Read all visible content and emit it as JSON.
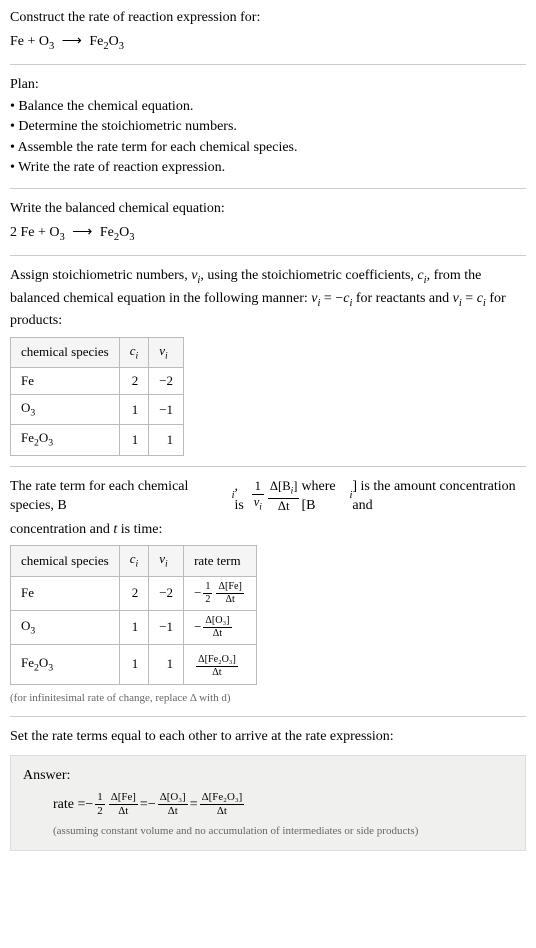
{
  "header": {
    "construct_text": "Construct the rate of reaction expression for:",
    "equation_left": "Fe + O",
    "equation_o_sub": "3",
    "equation_arrow": "⟶",
    "equation_right": "Fe",
    "equation_fe_sub": "2",
    "equation_right2": "O",
    "equation_o2_sub": "3"
  },
  "plan": {
    "title": "Plan:",
    "items": [
      "• Balance the chemical equation.",
      "• Determine the stoichiometric numbers.",
      "• Assemble the rate term for each chemical species.",
      "• Write the rate of reaction expression."
    ]
  },
  "balanced": {
    "title": "Write the balanced chemical equation:",
    "eq_prefix": "2 Fe + O",
    "o3_sub": "3",
    "arrow": "⟶",
    "fe": "Fe",
    "fe_sub": "2",
    "o": "O",
    "o_sub": "3"
  },
  "stoich": {
    "intro1": "Assign stoichiometric numbers, ",
    "nu_i": "ν",
    "i_sub": "i",
    "intro2": ", using the stoichiometric coefficients, ",
    "c_i": "c",
    "intro3": ", from the balanced chemical equation in the following manner: ",
    "eq1": " = −",
    "intro4": " for reactants and ",
    "eq2": " = ",
    "intro5": " for products:",
    "headers": [
      "chemical species",
      "cᵢ",
      "νᵢ"
    ],
    "rows": [
      {
        "species": "Fe",
        "sub": "",
        "c": "2",
        "nu": "−2"
      },
      {
        "species": "O",
        "sub": "3",
        "c": "1",
        "nu": "−1"
      },
      {
        "species": "Fe",
        "sub": "2",
        "species2": "O",
        "sub2": "3",
        "c": "1",
        "nu": "1"
      }
    ]
  },
  "rateterm": {
    "intro1": "The rate term for each chemical species, B",
    "i_sub": "i",
    "intro2": ", is ",
    "frac1_top": "1",
    "frac1_bot_nu": "ν",
    "frac1_bot_i": "i",
    "frac2_top_delta": "Δ[B",
    "frac2_top_i": "i",
    "frac2_top_close": "]",
    "frac2_bot": "Δt",
    "intro3": " where [B",
    "intro4": "] is the amount concentration and ",
    "t_var": "t",
    "intro5": " is time:",
    "headers": [
      "chemical species",
      "cᵢ",
      "νᵢ",
      "rate term"
    ],
    "rows": [
      {
        "species": "Fe",
        "sub": "",
        "c": "2",
        "nu": "−2",
        "rt_neg": "−",
        "rt_half_top": "1",
        "rt_half_bot": "2",
        "rt_delta_top": "Δ[Fe]",
        "rt_delta_bot": "Δt"
      },
      {
        "species": "O",
        "sub": "3",
        "c": "1",
        "nu": "−1",
        "rt_neg": "−",
        "rt_delta_top": "Δ[O₃]",
        "rt_delta_bot": "Δt"
      },
      {
        "species": "Fe",
        "sub": "2",
        "species2": "O",
        "sub2": "3",
        "c": "1",
        "nu": "1",
        "rt_delta_top": "Δ[Fe₂O₃]",
        "rt_delta_bot": "Δt"
      }
    ],
    "footnote": "(for infinitesimal rate of change, replace Δ with d)"
  },
  "final": {
    "title": "Set the rate terms equal to each other to arrive at the rate expression:"
  },
  "answer": {
    "label": "Answer:",
    "rate_label": "rate = ",
    "neg": "−",
    "half_top": "1",
    "half_bot": "2",
    "fe_top": "Δ[Fe]",
    "dt": "Δt",
    "eq": " = ",
    "o3_top": "Δ[O₃]",
    "fe2o3_top": "Δ[Fe₂O₃]",
    "note": "(assuming constant volume and no accumulation of intermediates or side products)"
  },
  "colors": {
    "text": "#000000",
    "hr": "#cccccc",
    "table_border": "#bbbbbb",
    "table_header_bg": "#f5f5f5",
    "footnote": "#666666",
    "answer_bg": "#f0f0ee",
    "answer_border": "#dddddd"
  }
}
